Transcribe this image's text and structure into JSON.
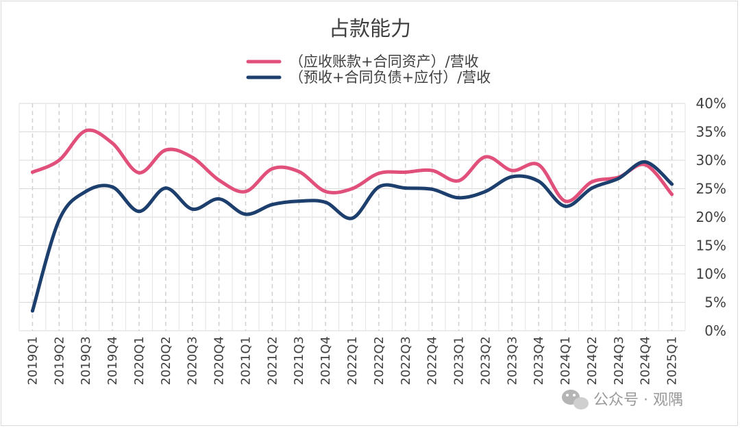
{
  "watermark": "公众号 · 观隅",
  "chart_data": {
    "type": "line",
    "title": "占款能力",
    "categories": [
      "2019Q1",
      "2019Q2",
      "2019Q3",
      "2019Q4",
      "2020Q1",
      "2020Q2",
      "2020Q3",
      "2020Q4",
      "2021Q1",
      "2021Q2",
      "2021Q3",
      "2021Q4",
      "2022Q1",
      "2022Q2",
      "2022Q3",
      "2022Q4",
      "2023Q1",
      "2023Q2",
      "2023Q3",
      "2023Q4",
      "2024Q1",
      "2024Q2",
      "2024Q3",
      "2024Q4",
      "2025Q1"
    ],
    "y_ticks": [
      "0%",
      "5%",
      "10%",
      "15%",
      "20%",
      "25%",
      "30%",
      "35%",
      "40%"
    ],
    "ylim": [
      0,
      0.4
    ],
    "y_axis_side": "right",
    "grid": true,
    "legend_position": "top",
    "series": [
      {
        "name": "（应收账款+合同资产）/营收",
        "color": "#e0507a",
        "values": [
          0.279,
          0.3,
          0.352,
          0.33,
          0.278,
          0.318,
          0.305,
          0.265,
          0.245,
          0.285,
          0.28,
          0.245,
          0.25,
          0.277,
          0.279,
          0.282,
          0.264,
          0.306,
          0.282,
          0.292,
          0.228,
          0.262,
          0.27,
          0.292,
          0.24
        ]
      },
      {
        "name": "（预收+合同负债+应付）/营收",
        "color": "#1c3f6e",
        "values": [
          0.035,
          0.195,
          0.245,
          0.253,
          0.21,
          0.251,
          0.214,
          0.232,
          0.205,
          0.222,
          0.228,
          0.226,
          0.198,
          0.253,
          0.251,
          0.249,
          0.234,
          0.245,
          0.271,
          0.263,
          0.219,
          0.251,
          0.268,
          0.297,
          0.258
        ]
      }
    ]
  }
}
